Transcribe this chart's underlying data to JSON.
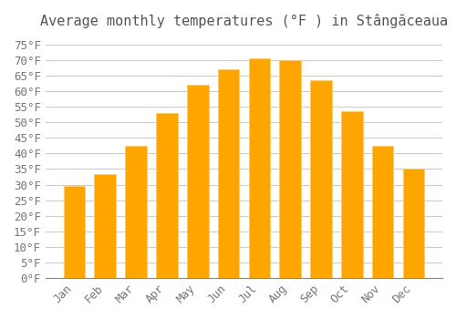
{
  "title": "Average monthly temperatures (°F ) in Stângăceaua",
  "months": [
    "Jan",
    "Feb",
    "Mar",
    "Apr",
    "May",
    "Jun",
    "Jul",
    "Aug",
    "Sep",
    "Oct",
    "Nov",
    "Dec"
  ],
  "values": [
    29.5,
    33.5,
    42.5,
    53,
    62,
    67,
    70.5,
    70,
    63.5,
    53.5,
    42.5,
    35
  ],
  "bar_color": "#FFA500",
  "bar_edge_color": "#FFB733",
  "background_color": "#FFFFFF",
  "grid_color": "#CCCCCC",
  "yticks": [
    0,
    5,
    10,
    15,
    20,
    25,
    30,
    35,
    40,
    45,
    50,
    55,
    60,
    65,
    70,
    75
  ],
  "ylim": [
    0,
    77
  ],
  "title_fontsize": 11,
  "tick_fontsize": 9,
  "font_family": "monospace"
}
